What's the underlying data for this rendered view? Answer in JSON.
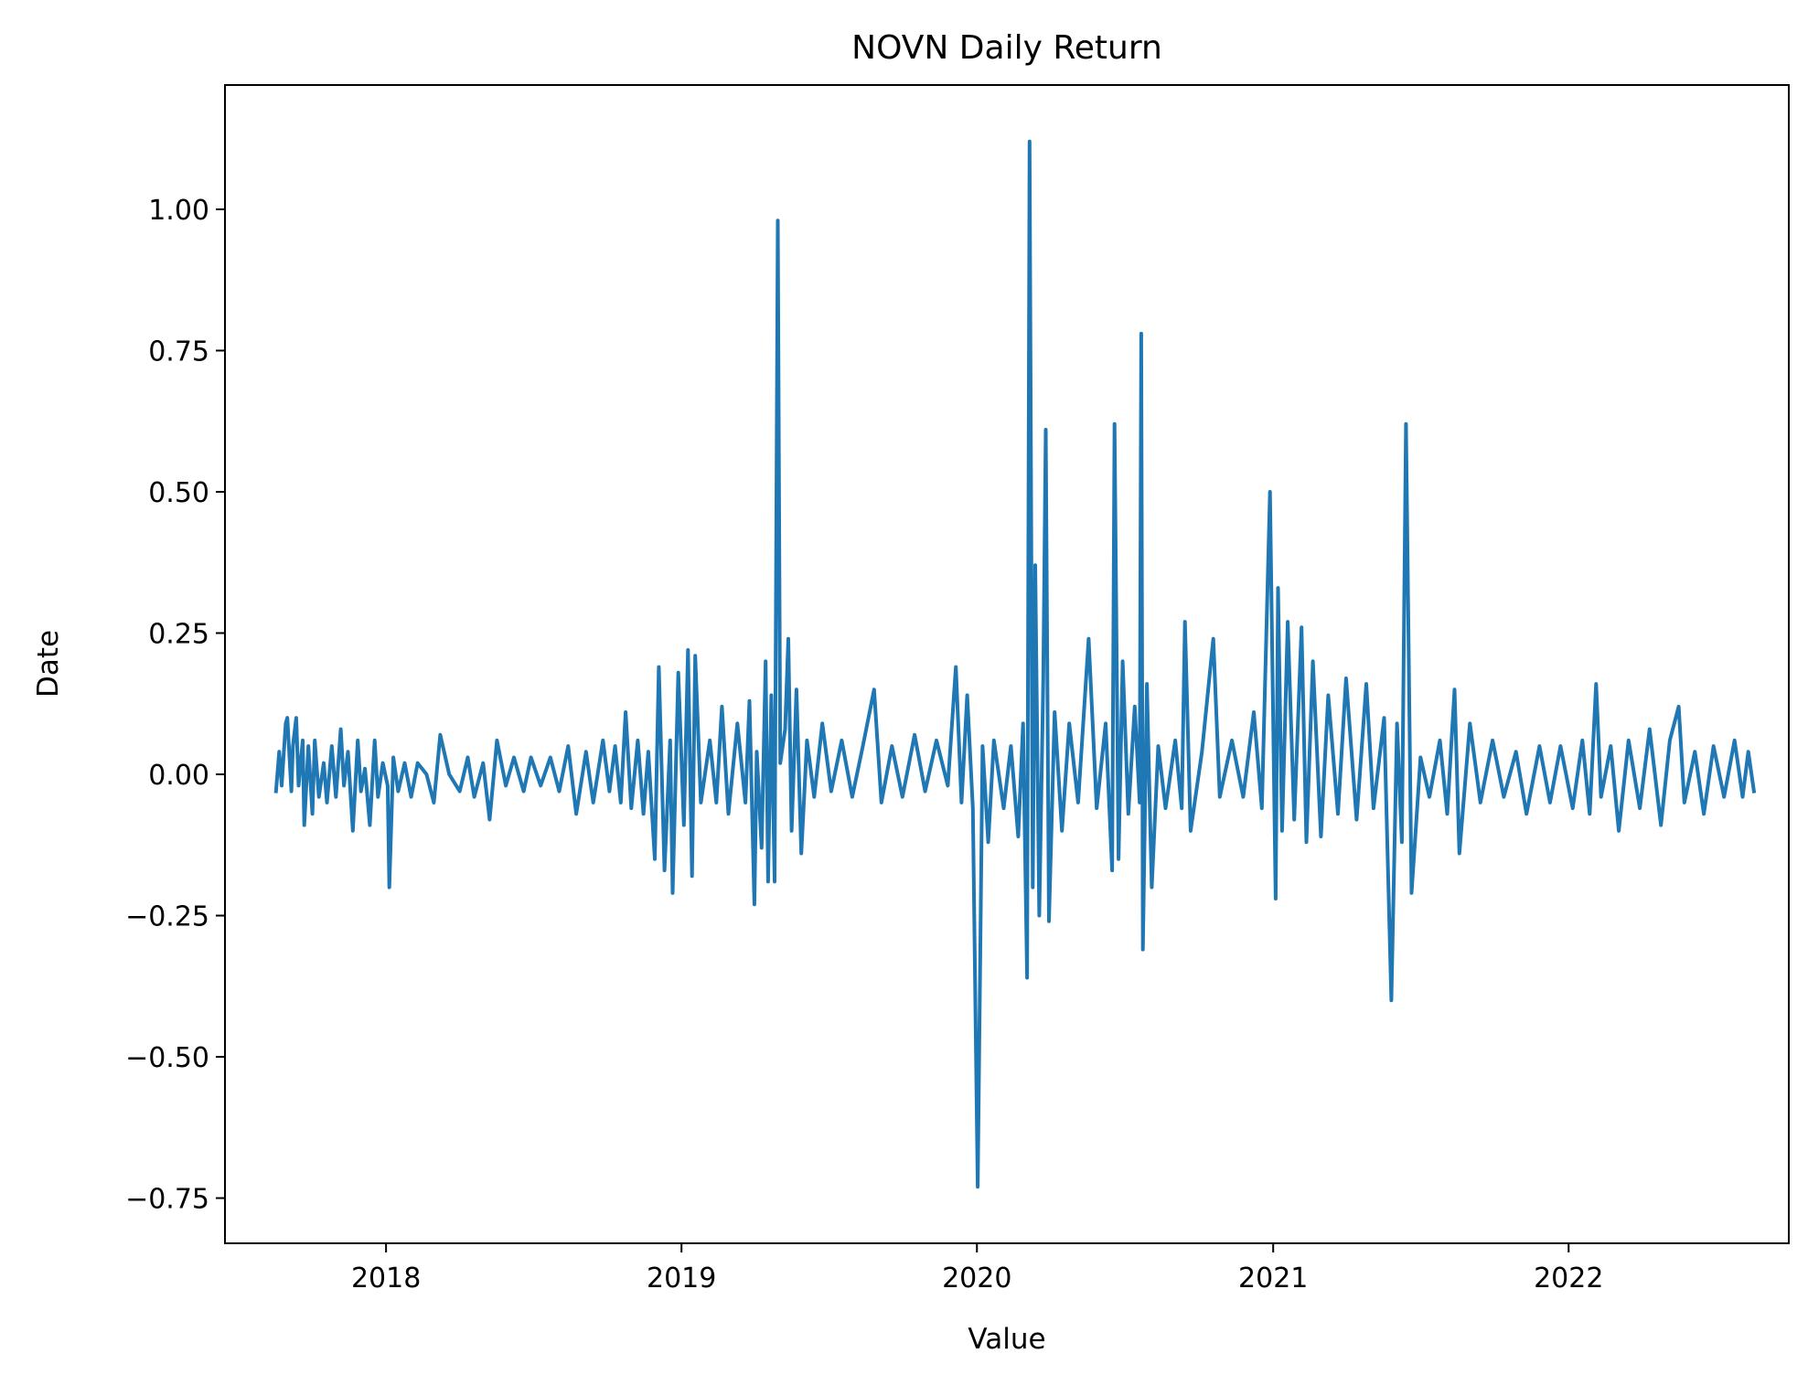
{
  "chart_data": {
    "type": "line",
    "title": "NOVN Daily Return",
    "xlabel": "Value",
    "ylabel": "Date",
    "x_axis": {
      "kind": "date",
      "range": [
        "2017-06-16",
        "2022-09-30"
      ],
      "ticks": [
        {
          "value": "2018-01-01",
          "label": "2018"
        },
        {
          "value": "2019-01-01",
          "label": "2019"
        },
        {
          "value": "2020-01-01",
          "label": "2020"
        },
        {
          "value": "2021-01-01",
          "label": "2021"
        },
        {
          "value": "2022-01-01",
          "label": "2022"
        }
      ]
    },
    "y_axis": {
      "range": [
        -0.83,
        1.22
      ],
      "ticks": [
        {
          "value": 1.0,
          "label": "1.00"
        },
        {
          "value": 0.75,
          "label": "0.75"
        },
        {
          "value": 0.5,
          "label": "0.50"
        },
        {
          "value": 0.25,
          "label": "0.25"
        },
        {
          "value": 0.0,
          "label": "0.00"
        },
        {
          "value": -0.25,
          "label": "−0.25"
        },
        {
          "value": -0.5,
          "label": "−0.50"
        },
        {
          "value": -0.75,
          "label": "−0.75"
        }
      ]
    },
    "grid": false,
    "legend": "none",
    "series": [
      {
        "color": "#1f77b4",
        "points": [
          [
            "2017-08-18",
            -0.03
          ],
          [
            "2017-08-22",
            0.04
          ],
          [
            "2017-08-25",
            -0.02
          ],
          [
            "2017-08-30",
            0.09
          ],
          [
            "2017-09-01",
            0.1
          ],
          [
            "2017-09-06",
            -0.03
          ],
          [
            "2017-09-08",
            0.05
          ],
          [
            "2017-09-12",
            0.1
          ],
          [
            "2017-09-15",
            -0.02
          ],
          [
            "2017-09-20",
            0.06
          ],
          [
            "2017-09-22",
            -0.09
          ],
          [
            "2017-09-27",
            0.05
          ],
          [
            "2017-10-02",
            -0.07
          ],
          [
            "2017-10-05",
            0.06
          ],
          [
            "2017-10-10",
            -0.04
          ],
          [
            "2017-10-16",
            0.02
          ],
          [
            "2017-10-20",
            -0.05
          ],
          [
            "2017-10-26",
            0.05
          ],
          [
            "2017-10-31",
            -0.04
          ],
          [
            "2017-11-06",
            0.08
          ],
          [
            "2017-11-10",
            -0.02
          ],
          [
            "2017-11-15",
            0.04
          ],
          [
            "2017-11-21",
            -0.1
          ],
          [
            "2017-11-27",
            0.06
          ],
          [
            "2017-12-01",
            -0.03
          ],
          [
            "2017-12-06",
            0.01
          ],
          [
            "2017-12-12",
            -0.09
          ],
          [
            "2017-12-18",
            0.06
          ],
          [
            "2017-12-22",
            -0.04
          ],
          [
            "2017-12-28",
            0.02
          ],
          [
            "2018-01-03",
            -0.02
          ],
          [
            "2018-01-05",
            -0.2
          ],
          [
            "2018-01-10",
            0.03
          ],
          [
            "2018-01-16",
            -0.03
          ],
          [
            "2018-01-24",
            0.02
          ],
          [
            "2018-02-01",
            -0.04
          ],
          [
            "2018-02-09",
            0.02
          ],
          [
            "2018-02-20",
            0.0
          ],
          [
            "2018-03-01",
            -0.05
          ],
          [
            "2018-03-09",
            0.07
          ],
          [
            "2018-03-20",
            0.0
          ],
          [
            "2018-04-02",
            -0.03
          ],
          [
            "2018-04-12",
            0.03
          ],
          [
            "2018-04-20",
            -0.04
          ],
          [
            "2018-05-01",
            0.02
          ],
          [
            "2018-05-09",
            -0.08
          ],
          [
            "2018-05-18",
            0.06
          ],
          [
            "2018-05-29",
            -0.02
          ],
          [
            "2018-06-08",
            0.03
          ],
          [
            "2018-06-20",
            -0.03
          ],
          [
            "2018-06-29",
            0.03
          ],
          [
            "2018-07-11",
            -0.02
          ],
          [
            "2018-07-23",
            0.03
          ],
          [
            "2018-08-03",
            -0.03
          ],
          [
            "2018-08-14",
            0.05
          ],
          [
            "2018-08-24",
            -0.07
          ],
          [
            "2018-09-05",
            0.04
          ],
          [
            "2018-09-14",
            -0.05
          ],
          [
            "2018-09-26",
            0.06
          ],
          [
            "2018-10-04",
            -0.03
          ],
          [
            "2018-10-11",
            0.05
          ],
          [
            "2018-10-18",
            -0.05
          ],
          [
            "2018-10-24",
            0.11
          ],
          [
            "2018-10-31",
            -0.06
          ],
          [
            "2018-11-08",
            0.06
          ],
          [
            "2018-11-15",
            -0.07
          ],
          [
            "2018-11-21",
            0.04
          ],
          [
            "2018-11-29",
            -0.15
          ],
          [
            "2018-12-04",
            0.19
          ],
          [
            "2018-12-11",
            -0.17
          ],
          [
            "2018-12-18",
            0.06
          ],
          [
            "2018-12-21",
            -0.21
          ],
          [
            "2018-12-28",
            0.18
          ],
          [
            "2019-01-04",
            -0.09
          ],
          [
            "2019-01-09",
            0.22
          ],
          [
            "2019-01-14",
            -0.18
          ],
          [
            "2019-01-18",
            0.21
          ],
          [
            "2019-01-25",
            -0.05
          ],
          [
            "2019-02-05",
            0.06
          ],
          [
            "2019-02-13",
            -0.05
          ],
          [
            "2019-02-20",
            0.12
          ],
          [
            "2019-02-28",
            -0.07
          ],
          [
            "2019-03-11",
            0.09
          ],
          [
            "2019-03-21",
            -0.05
          ],
          [
            "2019-03-26",
            0.13
          ],
          [
            "2019-04-01",
            -0.23
          ],
          [
            "2019-04-04",
            0.04
          ],
          [
            "2019-04-10",
            -0.13
          ],
          [
            "2019-04-15",
            0.2
          ],
          [
            "2019-04-18",
            -0.19
          ],
          [
            "2019-04-22",
            0.14
          ],
          [
            "2019-04-26",
            -0.19
          ],
          [
            "2019-04-30",
            0.98
          ],
          [
            "2019-05-03",
            0.02
          ],
          [
            "2019-05-09",
            0.08
          ],
          [
            "2019-05-13",
            0.24
          ],
          [
            "2019-05-17",
            -0.1
          ],
          [
            "2019-05-23",
            0.15
          ],
          [
            "2019-05-29",
            -0.14
          ],
          [
            "2019-06-05",
            0.06
          ],
          [
            "2019-06-14",
            -0.04
          ],
          [
            "2019-06-24",
            0.09
          ],
          [
            "2019-07-05",
            -0.03
          ],
          [
            "2019-07-18",
            0.06
          ],
          [
            "2019-07-31",
            -0.04
          ],
          [
            "2019-08-13",
            0.05
          ],
          [
            "2019-08-27",
            0.15
          ],
          [
            "2019-09-05",
            -0.05
          ],
          [
            "2019-09-18",
            0.05
          ],
          [
            "2019-10-01",
            -0.04
          ],
          [
            "2019-10-16",
            0.07
          ],
          [
            "2019-10-29",
            -0.03
          ],
          [
            "2019-11-12",
            0.06
          ],
          [
            "2019-11-26",
            -0.02
          ],
          [
            "2019-12-06",
            0.19
          ],
          [
            "2019-12-13",
            -0.05
          ],
          [
            "2019-12-20",
            0.14
          ],
          [
            "2019-12-27",
            -0.06
          ],
          [
            "2020-01-02",
            -0.73
          ],
          [
            "2020-01-08",
            0.05
          ],
          [
            "2020-01-15",
            -0.12
          ],
          [
            "2020-01-22",
            0.06
          ],
          [
            "2020-02-03",
            -0.06
          ],
          [
            "2020-02-12",
            0.05
          ],
          [
            "2020-02-21",
            -0.11
          ],
          [
            "2020-02-27",
            0.09
          ],
          [
            "2020-03-03",
            -0.36
          ],
          [
            "2020-03-06",
            1.12
          ],
          [
            "2020-03-10",
            -0.2
          ],
          [
            "2020-03-13",
            0.37
          ],
          [
            "2020-03-18",
            -0.25
          ],
          [
            "2020-03-23",
            0.17
          ],
          [
            "2020-03-26",
            0.61
          ],
          [
            "2020-03-30",
            -0.26
          ],
          [
            "2020-04-06",
            0.11
          ],
          [
            "2020-04-15",
            -0.1
          ],
          [
            "2020-04-24",
            0.09
          ],
          [
            "2020-05-05",
            -0.05
          ],
          [
            "2020-05-18",
            0.24
          ],
          [
            "2020-05-28",
            -0.06
          ],
          [
            "2020-06-08",
            0.09
          ],
          [
            "2020-06-16",
            -0.17
          ],
          [
            "2020-06-19",
            0.62
          ],
          [
            "2020-06-24",
            -0.15
          ],
          [
            "2020-06-29",
            0.2
          ],
          [
            "2020-07-06",
            -0.07
          ],
          [
            "2020-07-14",
            0.12
          ],
          [
            "2020-07-20",
            -0.05
          ],
          [
            "2020-07-22",
            0.78
          ],
          [
            "2020-07-24",
            -0.31
          ],
          [
            "2020-07-29",
            0.16
          ],
          [
            "2020-08-04",
            -0.2
          ],
          [
            "2020-08-12",
            0.05
          ],
          [
            "2020-08-21",
            -0.06
          ],
          [
            "2020-09-02",
            0.06
          ],
          [
            "2020-09-10",
            -0.06
          ],
          [
            "2020-09-14",
            0.27
          ],
          [
            "2020-09-21",
            -0.1
          ],
          [
            "2020-10-05",
            0.04
          ],
          [
            "2020-10-19",
            0.24
          ],
          [
            "2020-10-27",
            -0.04
          ],
          [
            "2020-11-11",
            0.06
          ],
          [
            "2020-11-25",
            -0.04
          ],
          [
            "2020-12-08",
            0.11
          ],
          [
            "2020-12-18",
            -0.06
          ],
          [
            "2020-12-28",
            0.5
          ],
          [
            "2021-01-04",
            -0.22
          ],
          [
            "2021-01-07",
            0.33
          ],
          [
            "2021-01-12",
            -0.1
          ],
          [
            "2021-01-19",
            0.27
          ],
          [
            "2021-01-27",
            -0.08
          ],
          [
            "2021-02-05",
            0.26
          ],
          [
            "2021-02-11",
            -0.12
          ],
          [
            "2021-02-19",
            0.2
          ],
          [
            "2021-03-01",
            -0.11
          ],
          [
            "2021-03-10",
            0.14
          ],
          [
            "2021-03-22",
            -0.07
          ],
          [
            "2021-04-01",
            0.17
          ],
          [
            "2021-04-14",
            -0.08
          ],
          [
            "2021-04-26",
            0.16
          ],
          [
            "2021-05-05",
            -0.06
          ],
          [
            "2021-05-18",
            0.1
          ],
          [
            "2021-05-27",
            -0.4
          ],
          [
            "2021-06-03",
            0.09
          ],
          [
            "2021-06-09",
            -0.12
          ],
          [
            "2021-06-14",
            0.62
          ],
          [
            "2021-06-21",
            -0.21
          ],
          [
            "2021-07-02",
            0.03
          ],
          [
            "2021-07-13",
            -0.04
          ],
          [
            "2021-07-26",
            0.06
          ],
          [
            "2021-08-04",
            -0.07
          ],
          [
            "2021-08-13",
            0.15
          ],
          [
            "2021-08-19",
            -0.14
          ],
          [
            "2021-09-01",
            0.09
          ],
          [
            "2021-09-14",
            -0.05
          ],
          [
            "2021-09-29",
            0.06
          ],
          [
            "2021-10-13",
            -0.04
          ],
          [
            "2021-10-28",
            0.04
          ],
          [
            "2021-11-10",
            -0.07
          ],
          [
            "2021-11-26",
            0.05
          ],
          [
            "2021-12-09",
            -0.05
          ],
          [
            "2021-12-22",
            0.05
          ],
          [
            "2022-01-06",
            -0.06
          ],
          [
            "2022-01-18",
            0.06
          ],
          [
            "2022-01-27",
            -0.07
          ],
          [
            "2022-02-04",
            0.16
          ],
          [
            "2022-02-10",
            -0.04
          ],
          [
            "2022-02-22",
            0.05
          ],
          [
            "2022-03-04",
            -0.1
          ],
          [
            "2022-03-16",
            0.06
          ],
          [
            "2022-03-30",
            -0.06
          ],
          [
            "2022-04-11",
            0.08
          ],
          [
            "2022-04-25",
            -0.09
          ],
          [
            "2022-05-06",
            0.06
          ],
          [
            "2022-05-17",
            0.12
          ],
          [
            "2022-05-24",
            -0.05
          ],
          [
            "2022-06-06",
            0.04
          ],
          [
            "2022-06-17",
            -0.07
          ],
          [
            "2022-06-29",
            0.05
          ],
          [
            "2022-07-12",
            -0.04
          ],
          [
            "2022-07-25",
            0.06
          ],
          [
            "2022-08-04",
            -0.04
          ],
          [
            "2022-08-11",
            0.04
          ],
          [
            "2022-08-18",
            -0.03
          ]
        ]
      }
    ]
  }
}
